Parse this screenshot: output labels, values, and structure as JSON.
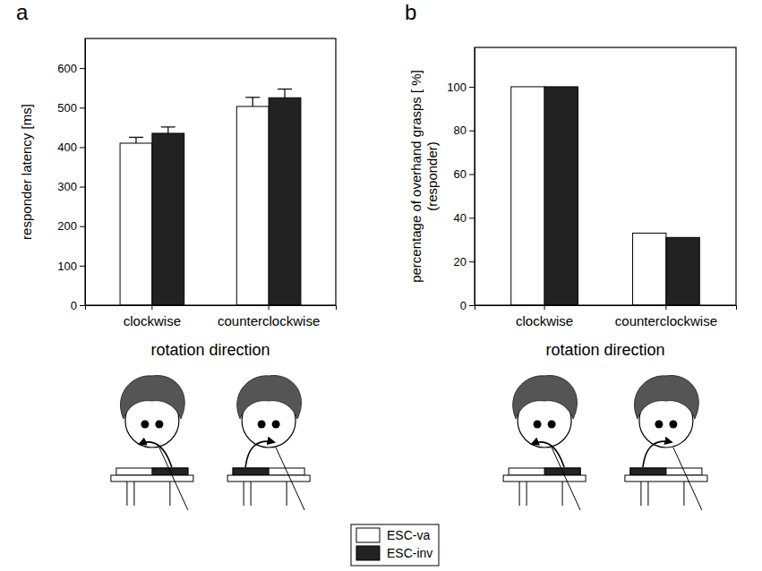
{
  "chart_data": [
    {
      "type": "bar",
      "panel_label": "a",
      "x_label": "rotation direction",
      "y_label": "responder latency [ms]",
      "categories": [
        "clockwise",
        "counterclockwise"
      ],
      "series": [
        {
          "name": "ESC-va",
          "color": "#ffffff",
          "values": [
            410,
            503
          ],
          "errors": [
            15,
            23
          ]
        },
        {
          "name": "ESC-inv",
          "color": "#222222",
          "values": [
            435,
            525
          ],
          "errors": [
            16,
            22
          ]
        }
      ],
      "ylim": [
        0,
        675
      ],
      "yticks": [
        0,
        100,
        200,
        300,
        400,
        500,
        600
      ],
      "legend": "bottom"
    },
    {
      "type": "bar",
      "panel_label": "b",
      "x_label": "rotation direction",
      "y_label": [
        "percentage of overhand grasps [ %]",
        "(responder)"
      ],
      "categories": [
        "clockwise",
        "counterclockwise"
      ],
      "series": [
        {
          "name": "ESC-va",
          "color": "#ffffff",
          "values": [
            100,
            33
          ]
        },
        {
          "name": "ESC-inv",
          "color": "#222222",
          "values": [
            100,
            31
          ]
        }
      ],
      "ylim": [
        0,
        118
      ],
      "yticks": [
        0,
        20,
        40,
        60,
        80,
        100
      ]
    }
  ]
}
